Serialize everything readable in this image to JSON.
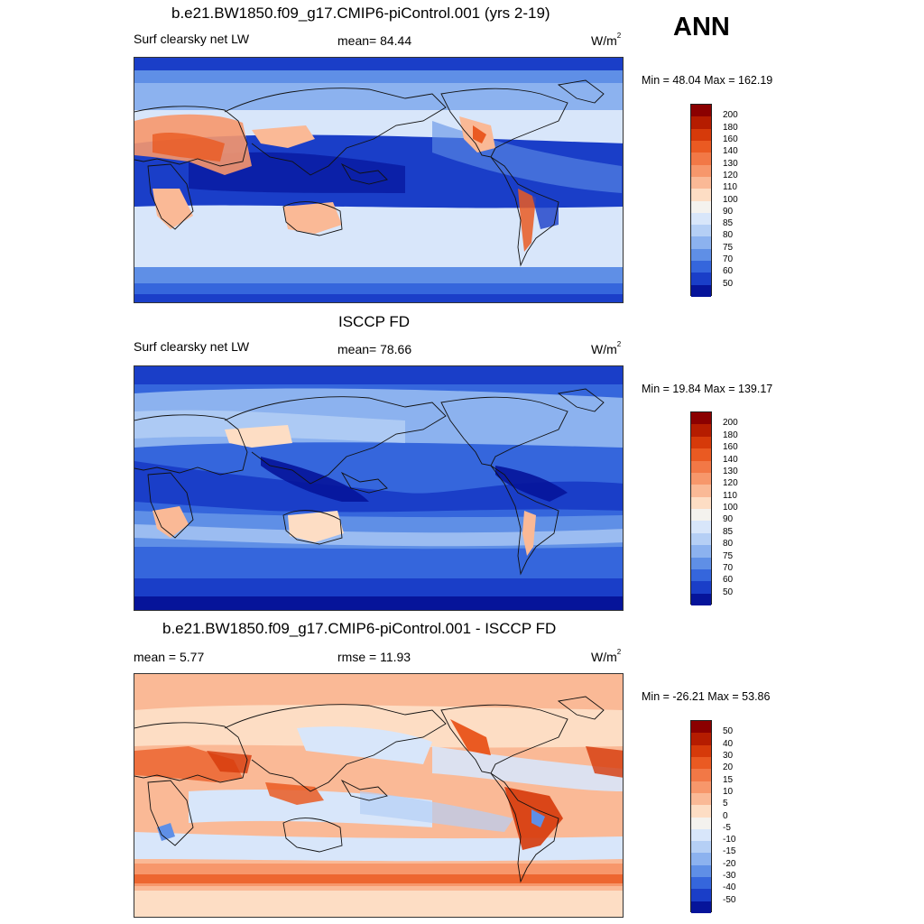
{
  "header": {
    "case": "b.e21.BW1850.f09_g17.CMIP6-piControl.001 (yrs 2-19)",
    "season": "ANN"
  },
  "panels": [
    {
      "name": "model",
      "title": "b.e21.BW1850.f09_g17.CMIP6-piControl.001 (yrs 2-19)",
      "left": "Surf clearsky net LW",
      "center": "mean=  84.44",
      "units": "W/m",
      "units_sup": "2",
      "minmax": "Min =  48.04 Max = 162.19",
      "ticks": [
        "200",
        "180",
        "160",
        "140",
        "130",
        "120",
        "110",
        "100",
        "90",
        "85",
        "80",
        "75",
        "70",
        "60",
        "50"
      ]
    },
    {
      "name": "obs",
      "title": "ISCCP FD",
      "left": "Surf clearsky net LW",
      "center": "mean=  78.66",
      "units": "W/m",
      "units_sup": "2",
      "minmax": "Min =  19.84 Max = 139.17",
      "ticks": [
        "200",
        "180",
        "160",
        "140",
        "130",
        "120",
        "110",
        "100",
        "90",
        "85",
        "80",
        "75",
        "70",
        "60",
        "50"
      ]
    },
    {
      "name": "diff",
      "title": "b.e21.BW1850.f09_g17.CMIP6-piControl.001 - ISCCP FD",
      "left": "mean =   5.77",
      "center": "rmse =  11.93",
      "units": "W/m",
      "units_sup": "2",
      "minmax": "Min = -26.21 Max =  53.86",
      "ticks": [
        "50",
        "40",
        "30",
        "20",
        "15",
        "10",
        "5",
        "0",
        "-5",
        "-10",
        "-15",
        "-20",
        "-30",
        "-40",
        "-50"
      ]
    }
  ],
  "colors": {
    "scale": [
      "#8b0000",
      "#b51c00",
      "#d63a0a",
      "#ea5a22",
      "#f27846",
      "#f7976b",
      "#fab996",
      "#fdddc4",
      "#f4f2ee",
      "#d8e6fa",
      "#b5cff5",
      "#8cb2ef",
      "#5f8fe6",
      "#3566dc",
      "#1a3ec8",
      "#06149a"
    ]
  }
}
